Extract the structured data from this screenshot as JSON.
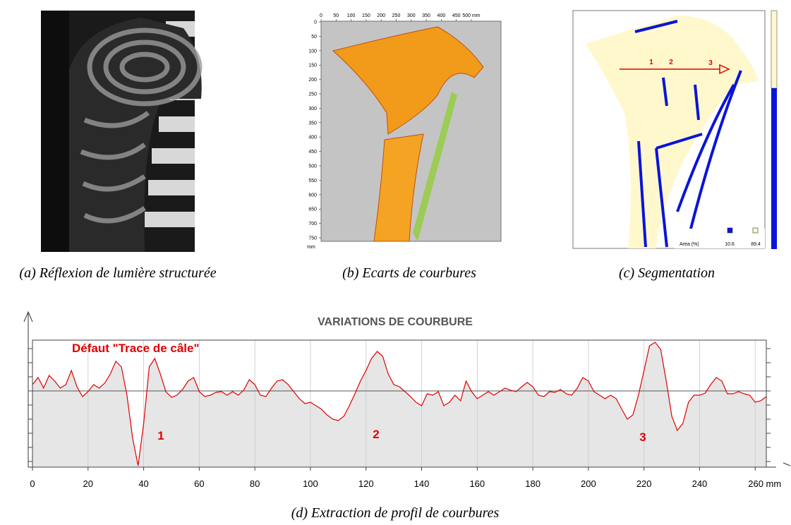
{
  "panels": [
    {
      "caption": "(a) Réflexion de lumière structurée"
    },
    {
      "caption": "(b) Ecarts de courbures",
      "xticks": [
        0,
        50,
        100,
        150,
        200,
        250,
        300,
        350,
        400,
        450,
        {
          "value": 500,
          "label": "500 mm"
        }
      ],
      "yticks": [
        0,
        50,
        100,
        150,
        200,
        250,
        300,
        350,
        400,
        450,
        500,
        550,
        600,
        650,
        700,
        750
      ],
      "yunit": "mm"
    },
    {
      "caption": "(c) Segmentation",
      "markers": [
        "1",
        "2",
        "3"
      ],
      "legend": {
        "title": "Area (%)",
        "values": [
          10.6,
          89.4
        ]
      }
    }
  ],
  "chart_data": {
    "type": "area",
    "title": "VARIATIONS DE COURBURE",
    "caption": "(d) Extraction de profil de courbures",
    "annotations": [
      "Défaut \"Trace de câle\"",
      "1",
      "2",
      "3"
    ],
    "color": "#e00000",
    "fill": "#e6e6e6",
    "grid": true,
    "xlim": [
      0,
      264
    ],
    "xticks": [
      0,
      20,
      40,
      60,
      80,
      100,
      120,
      140,
      160,
      180,
      200,
      220,
      240,
      {
        "value": 260,
        "label": "260 mm"
      }
    ],
    "ylim": [
      -5.4,
      3.6
    ],
    "yticks": [
      -5,
      -4,
      -3,
      -2,
      -1,
      0,
      1,
      2,
      3
    ],
    "x": [
      0,
      2,
      4,
      6,
      8,
      10,
      12,
      14,
      16,
      18,
      20,
      22,
      24,
      26,
      28,
      30,
      32,
      34,
      36,
      38,
      40,
      42,
      44,
      46,
      48,
      50,
      52,
      54,
      56,
      58,
      60,
      62,
      64,
      66,
      68,
      70,
      72,
      74,
      76,
      78,
      80,
      82,
      84,
      86,
      88,
      90,
      92,
      94,
      96,
      98,
      100,
      102,
      104,
      106,
      108,
      110,
      112,
      114,
      116,
      118,
      120,
      122,
      124,
      126,
      128,
      130,
      132,
      134,
      136,
      138,
      140,
      142,
      144,
      146,
      148,
      150,
      152,
      154,
      156,
      158,
      160,
      162,
      164,
      166,
      168,
      170,
      172,
      174,
      176,
      178,
      180,
      182,
      184,
      186,
      188,
      190,
      192,
      194,
      196,
      198,
      200,
      202,
      204,
      206,
      208,
      210,
      212,
      214,
      216,
      218,
      220,
      222,
      224,
      226,
      228,
      230,
      232,
      234,
      236,
      238,
      240,
      242,
      244,
      246,
      248,
      250,
      252,
      254,
      256,
      258,
      260,
      262,
      264
    ],
    "values": [
      0.45,
      0.95,
      0.2,
      1.1,
      0.7,
      0.2,
      0.45,
      1.45,
      0.3,
      -0.4,
      -0.05,
      0.45,
      0.2,
      0.55,
      1.2,
      2.1,
      1.7,
      -0.3,
      -3.3,
      -5.3,
      -2.3,
      1.7,
      2.3,
      1.2,
      -0.05,
      -0.45,
      -0.3,
      0.1,
      0.7,
      0.95,
      -0.05,
      -0.4,
      -0.3,
      -0.1,
      -0.05,
      -0.3,
      -0.05,
      -0.3,
      0.05,
      0.8,
      0.45,
      -0.3,
      -0.4,
      0.2,
      0.7,
      0.8,
      0.45,
      -0.05,
      -0.55,
      -0.9,
      -0.8,
      -1.05,
      -1.3,
      -1.7,
      -2,
      -2.1,
      -1.8,
      -1.05,
      -0.2,
      0.7,
      1.45,
      2.3,
      2.8,
      2.45,
      1.2,
      0.45,
      0.3,
      -0.05,
      -0.4,
      -0.8,
      -1.05,
      -0.2,
      -0.3,
      -0.05,
      -1.05,
      -0.8,
      -0.3,
      -0.7,
      0.7,
      -0.05,
      -0.55,
      -0.3,
      -0.05,
      -0.3,
      -0.05,
      0.2,
      0.05,
      -0.05,
      0.3,
      0.6,
      0.3,
      -0.3,
      -0.4,
      -0.05,
      -0.1,
      0.1,
      -0.2,
      -0.3,
      0.2,
      0.95,
      0.7,
      -0.05,
      -0.3,
      -0.55,
      -0.3,
      -0.55,
      -1.3,
      -2,
      -1.7,
      -0.3,
      1.45,
      3.2,
      3.45,
      2.95,
      0.7,
      -1.8,
      -2.8,
      -2.3,
      -0.8,
      -0.3,
      -0.3,
      -0.15,
      0.45,
      0.95,
      0.7,
      -0.2,
      -0.2,
      -0.05,
      -0.2,
      -0.3,
      -0.8,
      -0.7,
      -0.4
    ]
  }
}
